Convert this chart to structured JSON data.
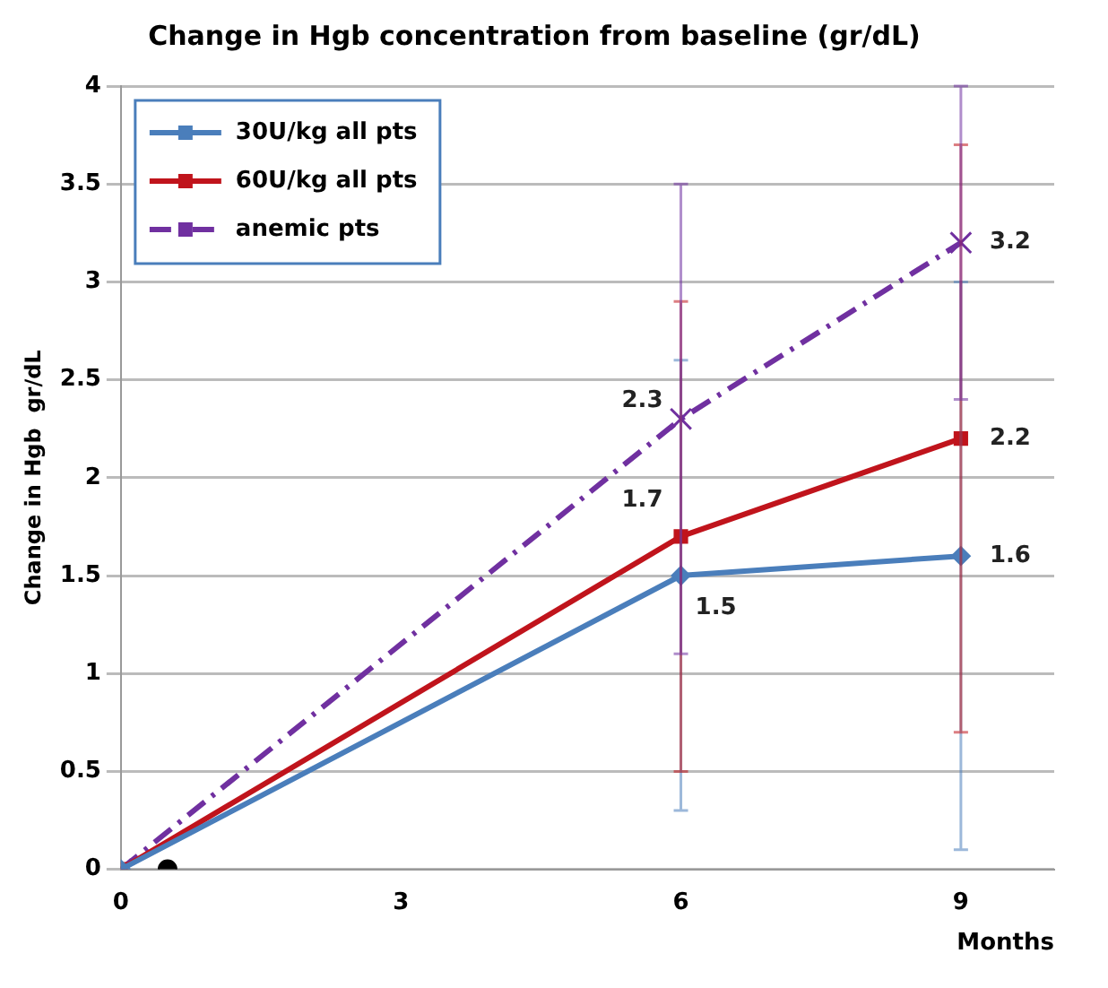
{
  "chart_data": {
    "type": "line",
    "title": "Change in Hgb concentration from baseline (gr/dL)",
    "xlabel": "Months",
    "ylabel": "Change in Hgb  gr/dL",
    "x": [
      0,
      6,
      9
    ],
    "xlim": [
      0,
      10
    ],
    "xticks": [
      0,
      3,
      6,
      9
    ],
    "ylim": [
      0,
      4
    ],
    "yticks": [
      0,
      0.5,
      1,
      1.5,
      2,
      2.5,
      3,
      3.5,
      4
    ],
    "grid": "y",
    "legend": "top left",
    "series": [
      {
        "name": "30U/kg all pts",
        "color": "#4a7ebb",
        "marker": "diamond",
        "line_style": "solid",
        "values": [
          0,
          1.5,
          1.6
        ],
        "errors": [
          null,
          [
            0.3,
            2.6
          ],
          [
            0.1,
            3.0
          ]
        ],
        "value_labels": [
          null,
          "1.5",
          "1.6"
        ]
      },
      {
        "name": "60U/kg all pts",
        "color": "#c0141c",
        "marker": "square",
        "line_style": "solid",
        "values": [
          0,
          1.7,
          2.2
        ],
        "errors": [
          null,
          [
            0.5,
            2.9
          ],
          [
            0.7,
            3.7
          ]
        ],
        "value_labels": [
          null,
          "1.7",
          "2.2"
        ]
      },
      {
        "name": "anemic pts",
        "color": "#7030a0",
        "marker": "cross",
        "line_style": "dashed",
        "values": [
          0,
          2.3,
          3.2
        ],
        "errors": [
          null,
          [
            1.1,
            3.5
          ],
          [
            2.4,
            4.0
          ]
        ],
        "value_labels": [
          null,
          "2.3",
          "3.2"
        ]
      },
      {
        "type": "scatter",
        "color": "#000000",
        "marker": "circle",
        "x": [
          0.5
        ],
        "values": [
          0
        ]
      }
    ]
  }
}
